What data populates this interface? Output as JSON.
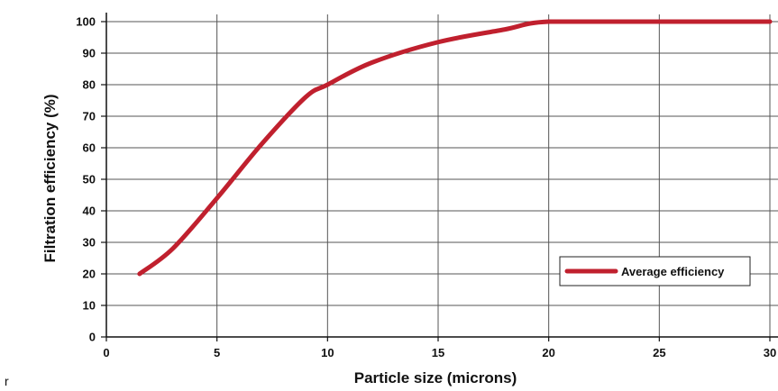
{
  "chart_data": {
    "type": "line",
    "title": "",
    "xlabel": "Particle size (microns)",
    "ylabel": "Filtration efficiency (%)",
    "xlim": [
      0,
      30
    ],
    "ylim": [
      0,
      100
    ],
    "x_ticks": [
      0,
      5,
      10,
      15,
      20,
      25,
      30
    ],
    "y_ticks": [
      0,
      10,
      20,
      30,
      40,
      50,
      60,
      70,
      80,
      90,
      100
    ],
    "grid": true,
    "legend_position": "bottom-right",
    "series": [
      {
        "name": "Average efficiency",
        "color": "#c0202e",
        "x": [
          1.5,
          3,
          5,
          7,
          9,
          10,
          12,
          15,
          18,
          20,
          25,
          30
        ],
        "y": [
          20,
          28,
          44,
          61,
          76,
          80,
          87,
          93.5,
          97.5,
          100,
          100,
          100
        ]
      }
    ]
  },
  "stray_text": "r"
}
